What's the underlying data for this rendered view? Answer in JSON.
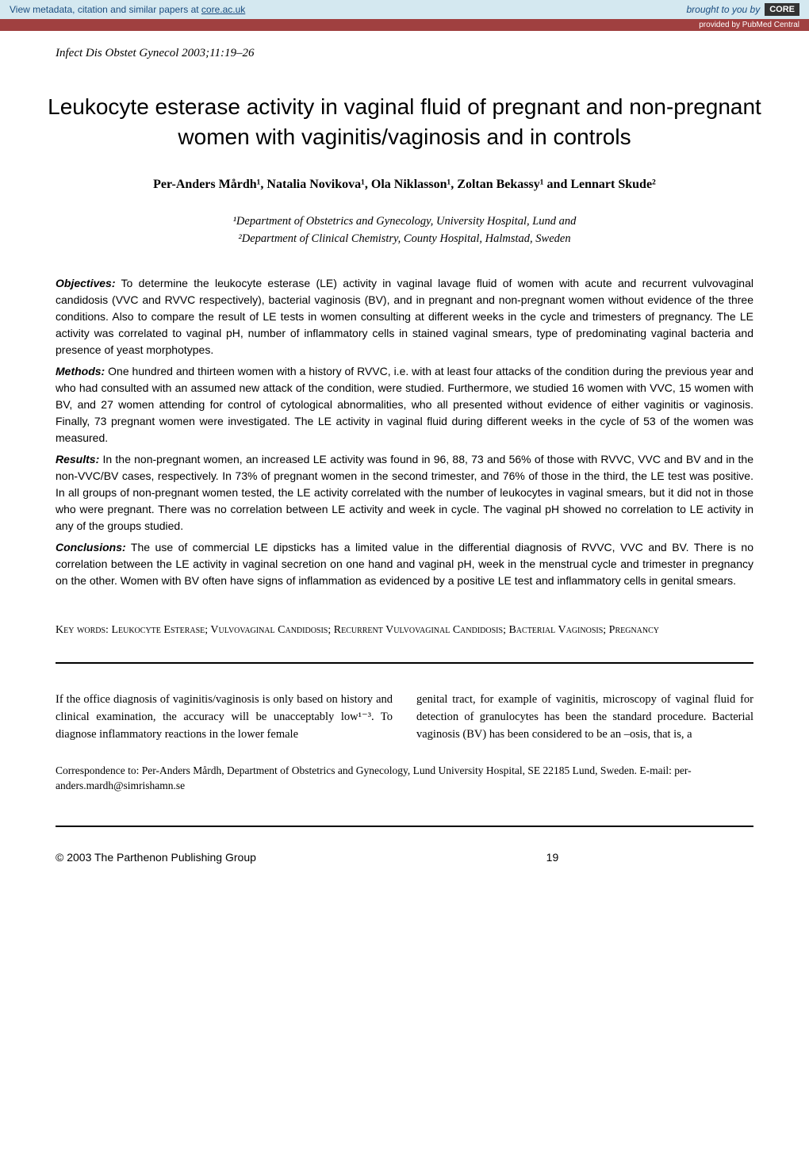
{
  "topbar": {
    "left_prefix": "View metadata, citation and similar papers at ",
    "left_link": "core.ac.uk",
    "brought": "brought to you by ",
    "core": "CORE",
    "provided": "provided by PubMed Central"
  },
  "journal_ref": "Infect Dis Obstet Gynecol 2003;11:19–26",
  "title": "Leukocyte esterase activity in vaginal fluid of pregnant and non-pregnant women with vaginitis/vaginosis and in controls",
  "authors": "Per-Anders Mårdh¹, Natalia Novikova¹, Ola Niklasson¹, Zoltan Bekassy¹ and Lennart Skude²",
  "affiliations": {
    "a1": "¹Department of Obstetrics and Gynecology, University Hospital, Lund and",
    "a2": "²Department of Clinical Chemistry, County Hospital, Halmstad, Sweden"
  },
  "abstract": {
    "objectives_label": "Objectives:",
    "objectives_text": " To determine the leukocyte esterase (LE) activity in vaginal lavage fluid of women with acute and recurrent vulvovaginal candidosis (VVC and RVVC respectively), bacterial vaginosis (BV), and in pregnant and non-pregnant women without evidence of the three conditions. Also to compare the result of LE tests in women consulting at different weeks in the cycle and trimesters of pregnancy. The LE activity was correlated to vaginal pH, number of inflammatory cells in stained vaginal smears, type of predominating vaginal bacteria and presence of yeast morphotypes.",
    "methods_label": "Methods:",
    "methods_text": " One hundred and thirteen women with a history of RVVC, i.e. with at least four attacks of the condition during the previous year and who had consulted with an assumed new attack of the condition, were studied. Furthermore, we studied 16 women with VVC, 15 women with BV, and 27 women attending for control of cytological abnormalities, who all presented without evidence of either vaginitis or vaginosis. Finally, 73 pregnant women were investigated. The LE activity in vaginal fluid during different weeks in the cycle of 53 of the women was measured.",
    "results_label": "Results:",
    "results_text": " In the non-pregnant women, an increased LE activity was found in 96, 88, 73 and 56% of those with RVVC, VVC and BV and in the non-VVC/BV cases, respectively. In 73% of pregnant women in the second trimester, and 76% of those in the third, the LE test was positive. In all groups of non-pregnant women tested, the LE activity correlated with the number of leukocytes in vaginal smears, but it did not in those who were pregnant. There was no correlation between LE activity and week in cycle. The vaginal pH showed no correlation to LE activity in any of the groups studied.",
    "conclusions_label": "Conclusions:",
    "conclusions_text": " The use of commercial LE dipsticks has a limited value in the differential diagnosis of RVVC, VVC and BV. There is no correlation between the LE activity in vaginal secretion on one hand and vaginal pH, week in the menstrual cycle and trimester in pregnancy on the other. Women with BV often have signs of inflammation as evidenced by a positive LE test and inflammatory cells in genital smears."
  },
  "keywords": {
    "label": "Key words: ",
    "content": "Leukocyte Esterase; Vulvovaginal Candidosis; Recurrent Vulvovaginal Candidosis; Bacterial Vaginosis; Pregnancy"
  },
  "body": {
    "col1": "If the office diagnosis of vaginitis/vaginosis is only based on history and clinical examination, the accuracy will be unacceptably low¹⁻³. To diagnose inflammatory reactions in the lower female",
    "col2": "genital tract, for example of vaginitis, microscopy of vaginal fluid for detection of granulocytes has been the standard procedure. Bacterial vaginosis (BV) has been considered to be an –osis, that is, a"
  },
  "correspondence": "Correspondence to: Per-Anders Mårdh, Department of Obstetrics and Gynecology, Lund University Hospital, SE 22185 Lund, Sweden. E-mail: per-anders.mardh@simrishamn.se",
  "footer": {
    "copyright": "© 2003 The Parthenon Publishing Group",
    "page": "19"
  }
}
